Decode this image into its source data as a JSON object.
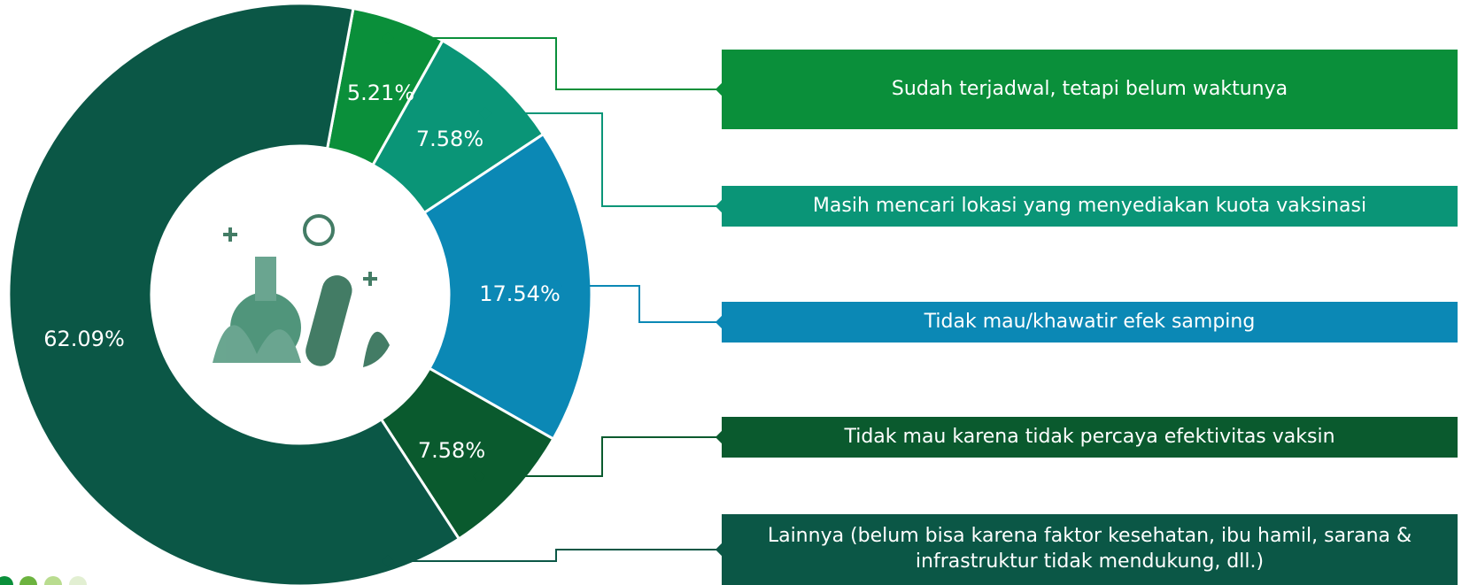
{
  "chart_data": {
    "type": "donut",
    "categories": [
      "Sudah terjadwal, tetapi belum waktunya",
      "Masih mencari lokasi yang menyediakan kuota vaksinasi",
      "Tidak mau/khawatir efek samping",
      "Tidak mau karena tidak percaya efektivitas vaksin",
      "Lainnya (belum bisa karena faktor kesehatan, ibu hamil, sarana & infrastruktur tidak mendukung, dll.)"
    ],
    "values": [
      5.21,
      7.58,
      17.54,
      7.58,
      62.09
    ],
    "value_labels": [
      "5.21%",
      "7.58%",
      "17.54%",
      "7.58%",
      "62.09%"
    ],
    "colors": [
      "#0a8f3a",
      "#0a9577",
      "#0b88b5",
      "#0a5a2e",
      "#0b5746"
    ]
  }
}
